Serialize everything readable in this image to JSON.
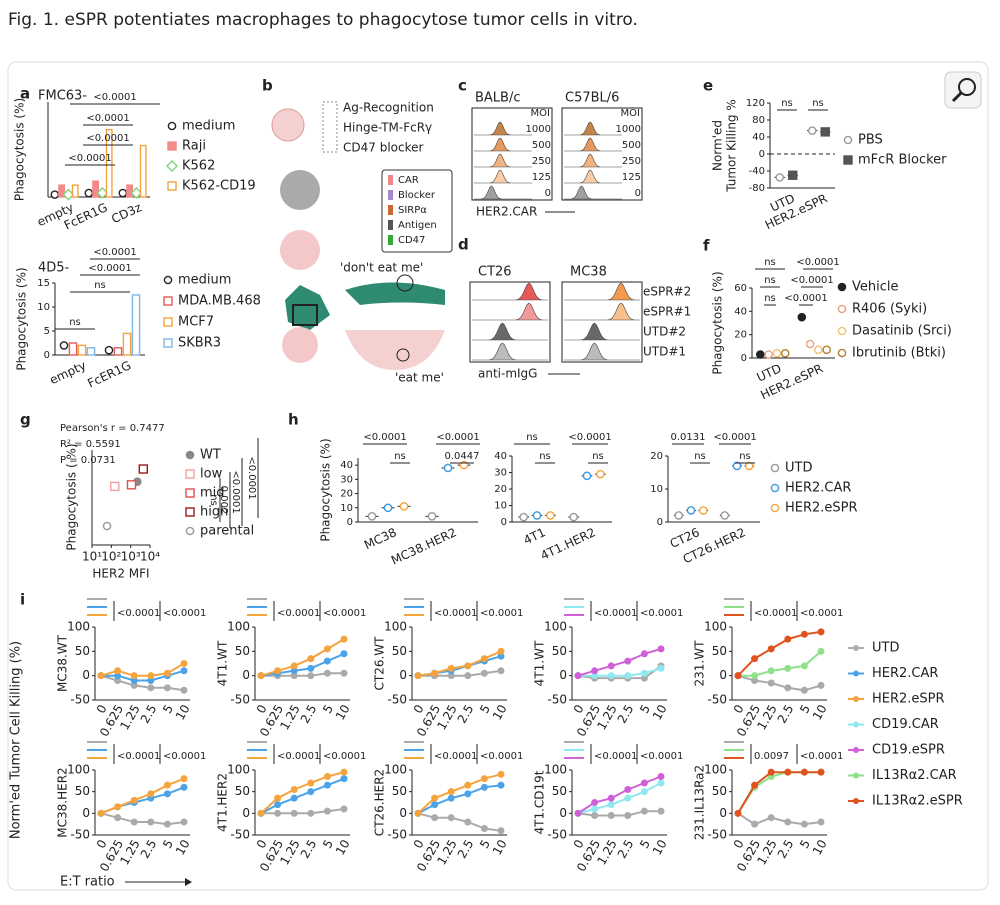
{
  "title": "Fig. 1. eSPR potentiates macrophages to phagocytose tumor cells in vitro.",
  "charts": [
    {
      "panel": "a",
      "name": "FMC63-",
      "ylabel": "Phagocytosis (%)",
      "categories": [
        "empty",
        "FcER1G",
        "CD3z"
      ],
      "ylim": [
        0,
        12
      ],
      "series": [
        {
          "name": "medium",
          "color": "#222",
          "marker": "open-circle",
          "values": [
            0.3,
            0.5,
            0.5
          ]
        },
        {
          "name": "Raji",
          "color": "#f28a8a",
          "marker": "bar",
          "values": [
            1.5,
            2,
            1.5
          ]
        },
        {
          "name": "K562",
          "color": "#7fd47a",
          "marker": "open-diamond",
          "values": [
            0.3,
            0.5,
            0.5
          ]
        },
        {
          "name": "K562-CD19",
          "color": "#f5a33c",
          "marker": "open-bar",
          "values": [
            1.5,
            8.5,
            6.5
          ]
        }
      ],
      "comparisons": [
        "<0.0001",
        "<0.0001",
        "<0.0001",
        "<0.0001"
      ],
      "legend": "right"
    },
    {
      "name": "4D5-",
      "ylabel": "Phagocytosis (%)",
      "categories": [
        "empty",
        "FcER1G"
      ],
      "ylim": [
        0,
        15
      ],
      "yticks": [
        0,
        5,
        10,
        15
      ],
      "series": [
        {
          "name": "medium",
          "color": "#222",
          "marker": "open-circle",
          "values": [
            2,
            1
          ]
        },
        {
          "name": "MDA.MB.468",
          "color": "#e05a5a",
          "marker": "open-bar",
          "values": [
            2.5,
            1.5
          ]
        },
        {
          "name": "MCF7",
          "color": "#f5a33c",
          "marker": "open-bar",
          "values": [
            2,
            4.5
          ]
        },
        {
          "name": "SKBR3",
          "color": "#7fb6e8",
          "marker": "open-bar",
          "values": [
            1.5,
            12.5
          ]
        }
      ],
      "comparisons": [
        "<0.0001",
        "<0.0001",
        "ns",
        "ns"
      ],
      "legend": "right"
    },
    {
      "panel": "e",
      "ylabel": [
        "Norm'ed",
        "Tumor Killing %"
      ],
      "categories": [
        "UTD",
        "HER2.eSPR"
      ],
      "ylim": [
        -80,
        120
      ],
      "yticks": [
        -80,
        -40,
        0,
        40,
        80,
        120
      ],
      "zero_line": true,
      "series": [
        {
          "name": "PBS",
          "color": "#999",
          "marker": "open-circle",
          "values": [
            -55,
            55
          ]
        },
        {
          "name": "mFcR Blocker",
          "color": "#555",
          "marker": "square",
          "values": [
            -50,
            52
          ]
        }
      ],
      "comparisons": [
        "ns",
        "ns"
      ],
      "legend": "right"
    },
    {
      "panel": "f",
      "ylabel": "Phagocytosis (%)",
      "categories": [
        "UTD",
        "HER2.eSPR"
      ],
      "ylim": [
        0,
        60
      ],
      "yticks": [
        0,
        20,
        40,
        60
      ],
      "series": [
        {
          "name": "Vehicle",
          "color": "#222",
          "marker": "circle",
          "values": [
            3,
            35
          ]
        },
        {
          "name": "R406 (Syki)",
          "color": "#e8a080",
          "marker": "open-circle",
          "values": [
            3,
            12
          ]
        },
        {
          "name": "Dasatinib (Srci)",
          "color": "#f2c070",
          "marker": "open-circle",
          "values": [
            4,
            7
          ]
        },
        {
          "name": "Ibrutinib (Btki)",
          "color": "#b08030",
          "marker": "open-circle",
          "values": [
            4,
            7
          ]
        }
      ],
      "comparisons": [
        "ns",
        "ns",
        "ns",
        "<0.0001",
        "<0.0001",
        "<0.0001"
      ],
      "legend": "right"
    },
    {
      "panel": "h",
      "ylabel": "Phagocytosis (%)",
      "categories": [
        "MC38",
        "MC38.HER2"
      ],
      "ylim": [
        0,
        45
      ],
      "yticks": [
        0,
        10,
        20,
        30,
        40
      ],
      "series": [
        {
          "name": "UTD",
          "color": "#999",
          "marker": "open-circle",
          "values": [
            4,
            4
          ]
        },
        {
          "name": "HER2.CAR",
          "color": "#3a9ae0",
          "marker": "open-circle",
          "values": [
            10,
            38
          ]
        },
        {
          "name": "HER2.eSPR",
          "color": "#f5a33c",
          "marker": "open-circle",
          "values": [
            11,
            40
          ]
        }
      ],
      "comparisons": [
        "<0.0001",
        "ns",
        "<0.0001",
        "0.0447"
      ]
    },
    {
      "categories": [
        "4T1",
        "4T1.HER2"
      ],
      "ylim": [
        0,
        40
      ],
      "yticks": [
        0,
        10,
        20,
        30,
        40
      ],
      "series": [
        {
          "name": "UTD",
          "color": "#999",
          "marker": "open-circle",
          "values": [
            3,
            3
          ]
        },
        {
          "name": "HER2.CAR",
          "color": "#3a9ae0",
          "marker": "open-circle",
          "values": [
            4,
            28
          ]
        },
        {
          "name": "HER2.eSPR",
          "color": "#f5a33c",
          "marker": "open-circle",
          "values": [
            4,
            29
          ]
        }
      ],
      "comparisons": [
        "ns",
        "ns",
        "<0.0001",
        "ns"
      ]
    },
    {
      "categories": [
        "CT26",
        "CT26.HER2"
      ],
      "ylim": [
        0,
        20
      ],
      "yticks": [
        0,
        10,
        20
      ],
      "series": [
        {
          "name": "UTD",
          "color": "#999",
          "marker": "open-circle",
          "values": [
            2,
            2
          ]
        },
        {
          "name": "HER2.CAR",
          "color": "#3a9ae0",
          "marker": "open-circle",
          "values": [
            3.5,
            17
          ]
        },
        {
          "name": "HER2.eSPR",
          "color": "#f5a33c",
          "marker": "open-circle",
          "values": [
            3.5,
            17
          ]
        }
      ],
      "comparisons": [
        "0.0131",
        "ns",
        "<0.0001",
        "ns"
      ],
      "legend": "right"
    }
  ],
  "b": {
    "panel": "b",
    "labels": [
      "Ag-Recognition",
      "Hinge-TM-FcRγ",
      "CD47 blocker",
      "CAR",
      "Blocker",
      "SIRPα",
      "Antigen",
      "CD47",
      "'don't eat me'",
      "'eat me'"
    ]
  },
  "c": {
    "panel": "c",
    "strains": [
      "BALB/c",
      "C57BL/6"
    ],
    "moi_label": "MOI",
    "moi": [
      "1000",
      "500",
      "250",
      "125",
      "0"
    ],
    "xlabel": "HER2.CAR"
  },
  "d": {
    "panel": "d",
    "lines": [
      "CT26",
      "MC38"
    ],
    "rows": [
      "eSPR#2",
      "eSPR#1",
      "UTD#2",
      "UTD#1"
    ],
    "xlabel": "anti-mIgG"
  },
  "scatter": {
    "panel": "g",
    "annotations": [
      "Pearson's r = 0.7477",
      "R² = 0.5591",
      "P = 0.0731"
    ],
    "ylabel": "Phagocytosis ( %)",
    "xlabel": "HER2 MFI",
    "xscale": "log",
    "xlim": [
      10,
      10000
    ],
    "xticks": [
      {
        "value": 10,
        "label": "10¹"
      },
      {
        "value": 100,
        "label": "10²"
      },
      {
        "value": 1000,
        "label": "10³"
      },
      {
        "value": 10000,
        "label": "10⁴"
      }
    ],
    "ylim": [
      0,
      60
    ],
    "series": [
      {
        "name": "WT",
        "color": "#888",
        "marker": "circle",
        "x": [
          2200
        ],
        "values": [
          40
        ]
      },
      {
        "name": "low",
        "color": "#f4a0a0",
        "marker": "open-square",
        "x": [
          150
        ],
        "values": [
          37
        ]
      },
      {
        "name": "mid",
        "color": "#e05050",
        "marker": "open-square",
        "x": [
          1100
        ],
        "values": [
          38
        ]
      },
      {
        "name": "high",
        "color": "#a01818",
        "marker": "open-square",
        "x": [
          4500
        ],
        "values": [
          48
        ]
      },
      {
        "name": "parental",
        "color": "#999",
        "marker": "open-circle",
        "x": [
          60
        ],
        "values": [
          12
        ]
      }
    ],
    "comparisons": [
      "ns",
      "0.002",
      "<0.0001",
      "<0.0001"
    ]
  },
  "lines": {
    "panel": "i",
    "ylabel": "Norm'ed Tumor Cell Killing (%)",
    "xlabel": "E:T ratio",
    "x": [
      "0",
      "0.625",
      "1.25",
      "2.5",
      "5",
      "10"
    ],
    "ylim": [
      -50,
      100
    ],
    "yticks": [
      -50,
      0,
      50,
      100
    ],
    "legend": [
      {
        "name": "UTD",
        "color": "#aaaaaa"
      },
      {
        "name": "HER2.CAR",
        "color": "#4aa3e8"
      },
      {
        "name": "HER2.eSPR",
        "color": "#f5a33c"
      },
      {
        "name": "CD19.CAR",
        "color": "#8ee8f0"
      },
      {
        "name": "CD19.eSPR",
        "color": "#d060d8"
      },
      {
        "name": "IL13Rα2.CAR",
        "color": "#8fe08a"
      },
      {
        "name": "IL13Rα2.eSPR",
        "color": "#e0531e"
      }
    ],
    "charts": [
      {
        "ylabel": "MC38.WT",
        "comparisons": [
          "<0.0001",
          "<0.0001"
        ],
        "series": [
          {
            "color": "#aaaaaa",
            "values": [
              0,
              -10,
              -20,
              -25,
              -25,
              -30
            ]
          },
          {
            "color": "#4aa3e8",
            "values": [
              0,
              0,
              -10,
              -10,
              0,
              10
            ]
          },
          {
            "color": "#f5a33c",
            "values": [
              0,
              10,
              0,
              0,
              5,
              25
            ]
          }
        ]
      },
      {
        "ylabel": "4T1.WT",
        "comparisons": [
          "<0.0001",
          "<0.0001"
        ],
        "series": [
          {
            "color": "#aaaaaa",
            "values": [
              0,
              0,
              0,
              0,
              5,
              5
            ]
          },
          {
            "color": "#4aa3e8",
            "values": [
              0,
              5,
              10,
              15,
              30,
              45
            ]
          },
          {
            "color": "#f5a33c",
            "values": [
              0,
              10,
              20,
              35,
              55,
              75
            ]
          }
        ]
      },
      {
        "ylabel": "CT26.WT",
        "comparisons": [
          "<0.0001",
          "<0.0001"
        ],
        "series": [
          {
            "color": "#aaaaaa",
            "values": [
              0,
              0,
              0,
              0,
              5,
              10
            ]
          },
          {
            "color": "#4aa3e8",
            "values": [
              0,
              5,
              10,
              20,
              30,
              40
            ]
          },
          {
            "color": "#f5a33c",
            "values": [
              0,
              5,
              15,
              20,
              35,
              50
            ]
          }
        ]
      },
      {
        "ylabel": "4T1.WT",
        "comparisons": [
          "<0.0001",
          "<0.0001"
        ],
        "series": [
          {
            "color": "#aaaaaa",
            "values": [
              0,
              -5,
              -5,
              -5,
              -5,
              20
            ]
          },
          {
            "color": "#8ee8f0",
            "values": [
              0,
              0,
              0,
              0,
              5,
              15
            ]
          },
          {
            "color": "#d060d8",
            "values": [
              0,
              10,
              20,
              30,
              45,
              55
            ]
          }
        ]
      },
      {
        "ylabel": "231.WT",
        "comparisons": [
          "<0.0001",
          "<0.0001"
        ],
        "series": [
          {
            "color": "#aaaaaa",
            "values": [
              0,
              -10,
              -15,
              -25,
              -30,
              -20
            ]
          },
          {
            "color": "#8fe08a",
            "values": [
              0,
              0,
              10,
              15,
              20,
              50
            ]
          },
          {
            "color": "#e0531e",
            "values": [
              0,
              35,
              55,
              75,
              85,
              90
            ]
          }
        ]
      },
      {
        "ylabel": "MC38.HER2",
        "comparisons": [
          "<0.0001",
          "<0.0001"
        ],
        "series": [
          {
            "color": "#aaaaaa",
            "values": [
              0,
              -10,
              -20,
              -20,
              -25,
              -20
            ]
          },
          {
            "color": "#4aa3e8",
            "values": [
              0,
              15,
              25,
              35,
              45,
              60
            ]
          },
          {
            "color": "#f5a33c",
            "values": [
              0,
              15,
              30,
              45,
              65,
              80
            ]
          }
        ]
      },
      {
        "ylabel": "4T1.HER2",
        "comparisons": [
          "<0.0001",
          "<0.0001"
        ],
        "series": [
          {
            "color": "#aaaaaa",
            "values": [
              0,
              0,
              0,
              0,
              5,
              10
            ]
          },
          {
            "color": "#4aa3e8",
            "values": [
              0,
              20,
              35,
              50,
              65,
              80
            ]
          },
          {
            "color": "#f5a33c",
            "values": [
              0,
              35,
              55,
              70,
              85,
              95
            ]
          }
        ]
      },
      {
        "ylabel": "CT26.HER2",
        "comparisons": [
          "<0.0001",
          "<0.0001"
        ],
        "series": [
          {
            "color": "#aaaaaa",
            "values": [
              0,
              -10,
              -10,
              -20,
              -35,
              -40
            ]
          },
          {
            "color": "#4aa3e8",
            "values": [
              0,
              20,
              35,
              45,
              60,
              65
            ]
          },
          {
            "color": "#f5a33c",
            "values": [
              0,
              35,
              50,
              65,
              80,
              90
            ]
          }
        ]
      },
      {
        "ylabel": "4T1.CD19t",
        "comparisons": [
          "<0.0001",
          "<0.0001"
        ],
        "series": [
          {
            "color": "#aaaaaa",
            "values": [
              0,
              -5,
              -5,
              -5,
              5,
              5
            ]
          },
          {
            "color": "#8ee8f0",
            "values": [
              0,
              10,
              20,
              35,
              50,
              70
            ]
          },
          {
            "color": "#d060d8",
            "values": [
              0,
              25,
              35,
              55,
              70,
              85
            ]
          }
        ]
      },
      {
        "ylabel": "231.IL13Ra2",
        "comparisons": [
          "0.0097",
          "<0.0001"
        ],
        "series": [
          {
            "color": "#aaaaaa",
            "values": [
              0,
              -25,
              -10,
              -20,
              -25,
              -20
            ]
          },
          {
            "color": "#8fe08a",
            "values": [
              0,
              60,
              85,
              95,
              95,
              95
            ]
          },
          {
            "color": "#e0531e",
            "values": [
              0,
              65,
              95,
              95,
              95,
              95
            ]
          }
        ]
      }
    ]
  }
}
